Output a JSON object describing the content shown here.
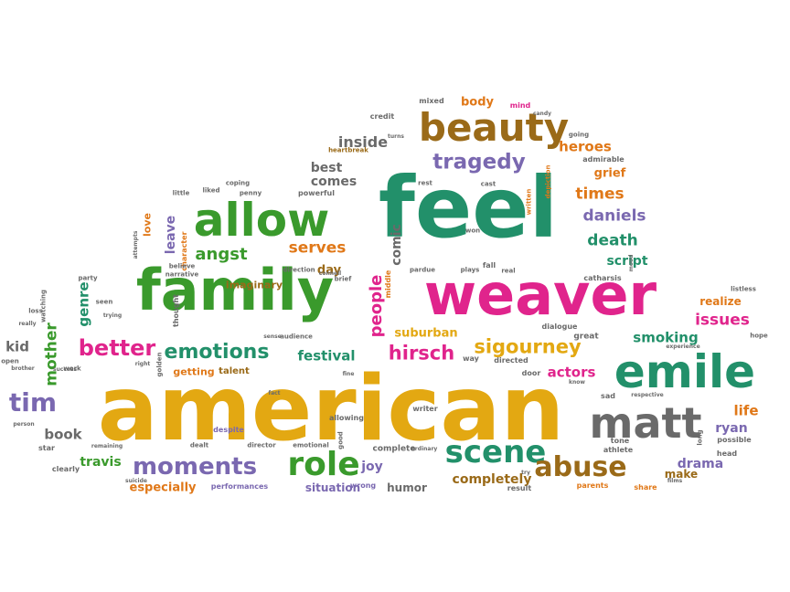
{
  "palette": {
    "green": "#3a9a2c",
    "teal": "#22906a",
    "magenta": "#e0248c",
    "orange": "#e07818",
    "gold": "#e3a812",
    "brown": "#9a6a18",
    "purple": "#7a68b0",
    "gray": "#6a6a6a"
  },
  "words": [
    {
      "text": "american",
      "color": "gold"
    },
    {
      "text": "feel",
      "color": "teal"
    },
    {
      "text": "family",
      "color": "green"
    },
    {
      "text": "weaver",
      "color": "magenta"
    },
    {
      "text": "emile",
      "color": "teal"
    },
    {
      "text": "matt",
      "color": "gray"
    },
    {
      "text": "allow",
      "color": "green"
    },
    {
      "text": "beauty",
      "color": "brown"
    },
    {
      "text": "role",
      "color": "green"
    },
    {
      "text": "scene",
      "color": "teal"
    },
    {
      "text": "abuse",
      "color": "brown"
    },
    {
      "text": "moments",
      "color": "purple"
    },
    {
      "text": "tragedy",
      "color": "purple"
    },
    {
      "text": "tim",
      "color": "purple"
    },
    {
      "text": "better",
      "color": "magenta"
    },
    {
      "text": "emotions",
      "color": "teal"
    },
    {
      "text": "sigourney",
      "color": "gold"
    },
    {
      "text": "hirsch",
      "color": "magenta"
    },
    {
      "text": "angst",
      "color": "green"
    },
    {
      "text": "daniels",
      "color": "purple"
    },
    {
      "text": "times",
      "color": "orange"
    },
    {
      "text": "death",
      "color": "teal"
    },
    {
      "text": "people",
      "color": "magenta"
    },
    {
      "text": "issues",
      "color": "magenta"
    },
    {
      "text": "comic",
      "color": "gray"
    },
    {
      "text": "serves",
      "color": "orange"
    },
    {
      "text": "inside",
      "color": "gray"
    },
    {
      "text": "heroes",
      "color": "orange"
    },
    {
      "text": "smoking",
      "color": "teal"
    },
    {
      "text": "actors",
      "color": "magenta"
    },
    {
      "text": "festival",
      "color": "teal"
    },
    {
      "text": "completely",
      "color": "brown"
    },
    {
      "text": "mother",
      "color": "green"
    },
    {
      "text": "genre",
      "color": "teal"
    },
    {
      "text": "kid",
      "color": "gray"
    },
    {
      "text": "book",
      "color": "gray"
    },
    {
      "text": "travis",
      "color": "green"
    },
    {
      "text": "especially",
      "color": "orange"
    },
    {
      "text": "situation",
      "color": "purple"
    },
    {
      "text": "humor",
      "color": "gray"
    },
    {
      "text": "joy",
      "color": "purple"
    },
    {
      "text": "drama",
      "color": "purple"
    },
    {
      "text": "life",
      "color": "orange"
    },
    {
      "text": "ryan",
      "color": "purple"
    },
    {
      "text": "make",
      "color": "brown"
    },
    {
      "text": "suburban",
      "color": "gold"
    },
    {
      "text": "script",
      "color": "teal"
    },
    {
      "text": "grief",
      "color": "orange"
    },
    {
      "text": "best",
      "color": "gray"
    },
    {
      "text": "comes",
      "color": "gray"
    },
    {
      "text": "day",
      "color": "brown"
    },
    {
      "text": "leave",
      "color": "purple"
    },
    {
      "text": "imaginary",
      "color": "brown"
    },
    {
      "text": "realize",
      "color": "orange"
    },
    {
      "text": "body",
      "color": "orange"
    },
    {
      "text": "mixed",
      "color": "gray"
    },
    {
      "text": "mind",
      "color": "magenta"
    },
    {
      "text": "credit",
      "color": "gray"
    },
    {
      "text": "going",
      "color": "gray"
    },
    {
      "text": "admirable",
      "color": "gray"
    },
    {
      "text": "heartbreak",
      "color": "brown"
    },
    {
      "text": "coping",
      "color": "gray"
    },
    {
      "text": "liked",
      "color": "gray"
    },
    {
      "text": "little",
      "color": "gray"
    },
    {
      "text": "penny",
      "color": "gray"
    },
    {
      "text": "powerful",
      "color": "gray"
    },
    {
      "text": "love",
      "color": "orange"
    },
    {
      "text": "character",
      "color": "orange"
    },
    {
      "text": "believe",
      "color": "gray"
    },
    {
      "text": "narrative",
      "color": "gray"
    },
    {
      "text": "direction",
      "color": "gray"
    },
    {
      "text": "party",
      "color": "gray"
    },
    {
      "text": "seen",
      "color": "gray"
    },
    {
      "text": "thought",
      "color": "gray"
    },
    {
      "text": "watching",
      "color": "gray"
    },
    {
      "text": "work",
      "color": "gray"
    },
    {
      "text": "getting",
      "color": "orange"
    },
    {
      "text": "talent",
      "color": "brown"
    },
    {
      "text": "despite",
      "color": "purple"
    },
    {
      "text": "dealt",
      "color": "gray"
    },
    {
      "text": "director",
      "color": "gray"
    },
    {
      "text": "emotional",
      "color": "gray"
    },
    {
      "text": "performances",
      "color": "purple"
    },
    {
      "text": "wrong",
      "color": "purple"
    },
    {
      "text": "complete",
      "color": "gray"
    },
    {
      "text": "writer",
      "color": "gray"
    },
    {
      "text": "allowing",
      "color": "gray"
    },
    {
      "text": "directed",
      "color": "gray"
    },
    {
      "text": "dialogue",
      "color": "gray"
    },
    {
      "text": "catharsis",
      "color": "gray"
    },
    {
      "text": "great",
      "color": "gray"
    },
    {
      "text": "door",
      "color": "gray"
    },
    {
      "text": "sad",
      "color": "gray"
    },
    {
      "text": "tone",
      "color": "gray"
    },
    {
      "text": "athlete",
      "color": "gray"
    },
    {
      "text": "parents",
      "color": "orange"
    },
    {
      "text": "share",
      "color": "orange"
    },
    {
      "text": "head",
      "color": "gray"
    },
    {
      "text": "possible",
      "color": "gray"
    },
    {
      "text": "hope",
      "color": "gray"
    },
    {
      "text": "listless",
      "color": "gray"
    },
    {
      "text": "respective",
      "color": "gray"
    },
    {
      "text": "cast",
      "color": "gray"
    },
    {
      "text": "rest",
      "color": "gray"
    },
    {
      "text": "written",
      "color": "orange"
    },
    {
      "text": "depiction",
      "color": "orange"
    },
    {
      "text": "won",
      "color": "gray"
    },
    {
      "text": "fall",
      "color": "gray"
    },
    {
      "text": "real",
      "color": "gray"
    },
    {
      "text": "plays",
      "color": "gray"
    },
    {
      "text": "pardue",
      "color": "gray"
    },
    {
      "text": "middle",
      "color": "orange"
    },
    {
      "text": "brief",
      "color": "gray"
    },
    {
      "text": "connell",
      "color": "gray"
    },
    {
      "text": "sense",
      "color": "gray"
    },
    {
      "text": "audience",
      "color": "gray"
    },
    {
      "text": "trying",
      "color": "gray"
    },
    {
      "text": "success",
      "color": "gray"
    },
    {
      "text": "loss",
      "color": "gray"
    },
    {
      "text": "really",
      "color": "gray"
    },
    {
      "text": "open",
      "color": "gray"
    },
    {
      "text": "brother",
      "color": "gray"
    },
    {
      "text": "person",
      "color": "gray"
    },
    {
      "text": "star",
      "color": "gray"
    },
    {
      "text": "clearly",
      "color": "gray"
    },
    {
      "text": "suicide",
      "color": "gray"
    },
    {
      "text": "remaining",
      "color": "gray"
    },
    {
      "text": "good",
      "color": "gray"
    },
    {
      "text": "fine",
      "color": "gray"
    },
    {
      "text": "result",
      "color": "gray"
    },
    {
      "text": "try",
      "color": "gray"
    },
    {
      "text": "way",
      "color": "gray"
    },
    {
      "text": "long",
      "color": "gray"
    },
    {
      "text": "films",
      "color": "gray"
    },
    {
      "text": "experience",
      "color": "gray"
    },
    {
      "text": "mood",
      "color": "gray"
    },
    {
      "text": "attempts",
      "color": "gray"
    },
    {
      "text": "turns",
      "color": "gray"
    },
    {
      "text": "candy",
      "color": "gray"
    },
    {
      "text": "right",
      "color": "gray"
    },
    {
      "text": "golden",
      "color": "gray"
    },
    {
      "text": "fact",
      "color": "gray"
    },
    {
      "text": "know",
      "color": "gray"
    },
    {
      "text": "ordinary",
      "color": "gray"
    }
  ]
}
